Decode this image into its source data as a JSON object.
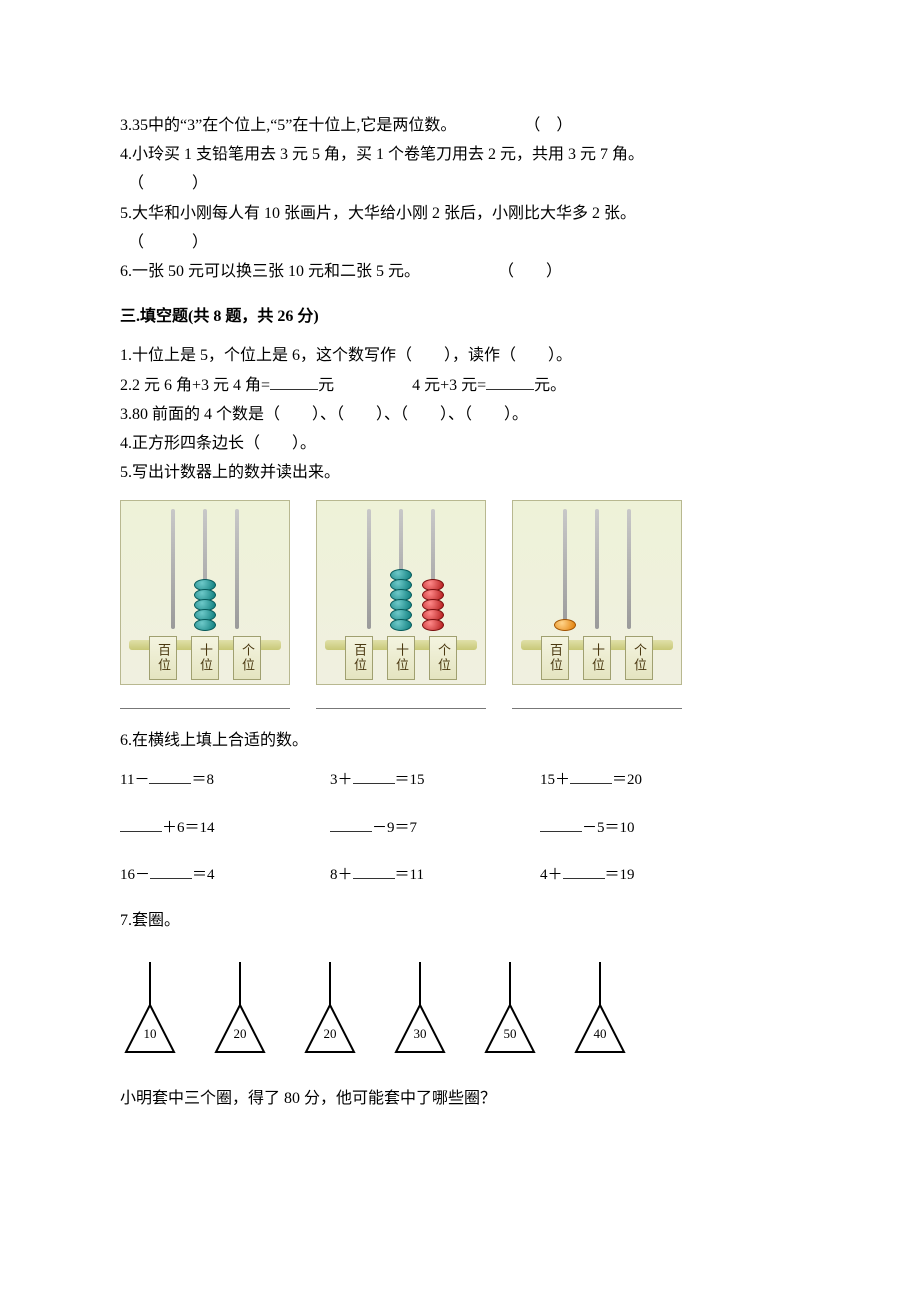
{
  "judgement": {
    "q3": "3.35中的“3”在个位上,“5”在十位上,它是两位数。",
    "q4": "4.小玲买 1 支铅笔用去 3 元 5 角，买 1 个卷笔刀用去 2 元，共用 3 元 7 角。",
    "q5": "5.大华和小刚每人有 10 张画片，大华给小刚 2 张后，小刚比大华多 2 张。",
    "q6": "6.一张 50 元可以换三张 10 元和二张 5 元。"
  },
  "section3_title": "三.填空题(共 8 题，共 26 分)",
  "fill": {
    "q1": "1.十位上是 5，个位上是 6，这个数写作（　　），读作（　　）。",
    "q2a": "2.2 元 6 角+3 元 4 角=",
    "q2a_unit": "元",
    "q2b": "4 元+3 元=",
    "q2b_unit": "元。",
    "q3": "3.80 前面的 4 个数是（　　）、（　　）、（　　）、（　　）。",
    "q4": "4.正方形四条边长（　　）。",
    "q5": "5.写出计数器上的数并读出来。"
  },
  "counters": [
    {
      "beads": [
        [],
        [
          "teal",
          "teal",
          "teal",
          "teal",
          "teal"
        ],
        []
      ],
      "labels": [
        "百位",
        "十位",
        "个位"
      ]
    },
    {
      "beads": [
        [],
        [
          "teal",
          "teal",
          "teal",
          "teal",
          "teal",
          "teal"
        ],
        [
          "red",
          "red",
          "red",
          "red",
          "red"
        ]
      ],
      "labels": [
        "百位",
        "十位",
        "个位"
      ]
    },
    {
      "beads": [
        [
          "orange"
        ],
        [],
        []
      ],
      "labels": [
        "百位",
        "十位",
        "个位"
      ]
    }
  ],
  "q6_title": "6.在横线上填上合适的数。",
  "equations": [
    [
      "11－",
      "＝8",
      "3＋",
      "＝15",
      "15＋",
      "＝20"
    ],
    [
      "",
      "＋6＝14",
      "",
      "－9＝7",
      "",
      "－5＝10"
    ],
    [
      "16－",
      "＝4",
      "8＋",
      "＝11",
      "4＋",
      "＝19"
    ]
  ],
  "q7_title": "7.套圈。",
  "pegs": [
    10,
    20,
    20,
    30,
    50,
    40
  ],
  "q7_text": "小明套中三个圈，得了 80 分，他可能套中了哪些圈？",
  "paren_open": "（",
  "paren_close": "）",
  "paren_space": "　　"
}
